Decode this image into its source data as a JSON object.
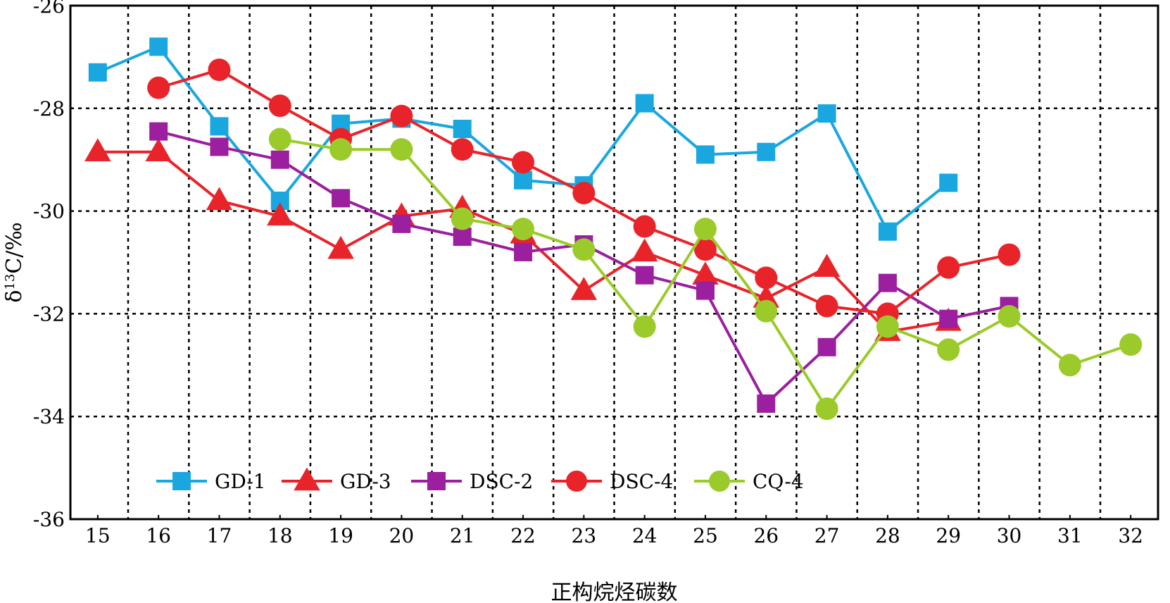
{
  "chart_data": {
    "type": "line",
    "xlabel": "正构烷烃碳数",
    "ylabel_main": "δ",
    "ylabel_sup": "13",
    "ylabel_rest": "C/‰",
    "x": [
      15,
      16,
      17,
      18,
      19,
      20,
      21,
      22,
      23,
      24,
      25,
      26,
      27,
      28,
      29,
      30,
      31,
      32
    ],
    "xlim": [
      14.55,
      32.45
    ],
    "ylim": [
      -36,
      -26
    ],
    "yticks": [
      -36,
      -34,
      -32,
      -30,
      -28,
      -26
    ],
    "grid": true,
    "legend_position": "bottom-left",
    "series": [
      {
        "name": "GD-1",
        "color": "#1aa7e0",
        "marker": "square",
        "points": [
          [
            15,
            -27.3
          ],
          [
            16,
            -26.8
          ],
          [
            17,
            -28.35
          ],
          [
            18,
            -29.8
          ],
          [
            19,
            -28.3
          ],
          [
            20,
            -28.2
          ],
          [
            21,
            -28.4
          ],
          [
            22,
            -29.4
          ],
          [
            23,
            -29.5
          ],
          [
            24,
            -27.9
          ],
          [
            25,
            -28.9
          ],
          [
            26,
            -28.85
          ],
          [
            27,
            -28.1
          ],
          [
            28,
            -30.4
          ],
          [
            29,
            -29.45
          ]
        ]
      },
      {
        "name": "GD-3",
        "color": "#e8242a",
        "marker": "triangle",
        "points": [
          [
            15,
            -28.85
          ],
          [
            16,
            -28.85
          ],
          [
            17,
            -29.8
          ],
          [
            18,
            -30.1
          ],
          [
            19,
            -30.75
          ],
          [
            20,
            -30.1
          ],
          [
            21,
            -29.95
          ],
          [
            22,
            -30.45
          ],
          [
            23,
            -31.55
          ],
          [
            24,
            -30.8
          ],
          [
            25,
            -31.25
          ],
          [
            26,
            -31.7
          ],
          [
            27,
            -31.1
          ],
          [
            28,
            -32.35
          ],
          [
            29,
            -32.15
          ]
        ]
      },
      {
        "name": "DSC-2",
        "color": "#9b1f9e",
        "marker": "square",
        "points": [
          [
            16,
            -28.45
          ],
          [
            17,
            -28.75
          ],
          [
            18,
            -29.0
          ],
          [
            19,
            -29.75
          ],
          [
            20,
            -30.25
          ],
          [
            21,
            -30.5
          ],
          [
            22,
            -30.8
          ],
          [
            23,
            -30.65
          ],
          [
            24,
            -31.25
          ],
          [
            25,
            -31.55
          ],
          [
            26,
            -33.75
          ],
          [
            27,
            -32.65
          ],
          [
            28,
            -31.4
          ],
          [
            29,
            -32.1
          ],
          [
            30,
            -31.85
          ]
        ]
      },
      {
        "name": "DSC-4",
        "color": "#e8242a",
        "marker": "circle",
        "points": [
          [
            16,
            -27.6
          ],
          [
            17,
            -27.25
          ],
          [
            18,
            -27.95
          ],
          [
            19,
            -28.6
          ],
          [
            20,
            -28.15
          ],
          [
            21,
            -28.8
          ],
          [
            22,
            -29.05
          ],
          [
            23,
            -29.65
          ],
          [
            24,
            -30.3
          ],
          [
            25,
            -30.75
          ],
          [
            26,
            -31.3
          ],
          [
            27,
            -31.85
          ],
          [
            28,
            -32.0
          ],
          [
            29,
            -31.1
          ],
          [
            30,
            -30.85
          ]
        ]
      },
      {
        "name": "CQ-4",
        "color": "#9acb2a",
        "marker": "circle",
        "points": [
          [
            18,
            -28.6
          ],
          [
            19,
            -28.8
          ],
          [
            20,
            -28.8
          ],
          [
            21,
            -30.15
          ],
          [
            22,
            -30.35
          ],
          [
            23,
            -30.75
          ],
          [
            24,
            -32.25
          ],
          [
            25,
            -30.35
          ],
          [
            26,
            -31.95
          ],
          [
            27,
            -33.85
          ],
          [
            28,
            -32.25
          ],
          [
            29,
            -32.7
          ],
          [
            30,
            -32.05
          ],
          [
            31,
            -33.0
          ],
          [
            32,
            -32.6
          ]
        ]
      }
    ]
  }
}
